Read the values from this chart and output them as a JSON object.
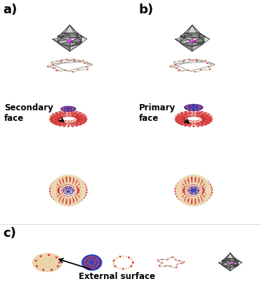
{
  "figure_width": 3.73,
  "figure_height": 4.34,
  "dpi": 100,
  "background_color": "#ffffff",
  "label_a": "a)",
  "label_b": "b)",
  "label_c": "c)",
  "label_fontsize": 13,
  "label_fontweight": "bold",
  "annotation_secondary": "Secondary\nface",
  "annotation_primary": "Primary\nface",
  "annotation_external": "External surface",
  "annotation_fontsize": 8.5,
  "annotation_fontweight": "bold",
  "red": "#cc1111",
  "tan": "#e8cfA0",
  "blue": "#2233bb",
  "gray": "#999999",
  "magenta": "#ee22ee",
  "dark": "#333333",
  "white": "#ffffff"
}
